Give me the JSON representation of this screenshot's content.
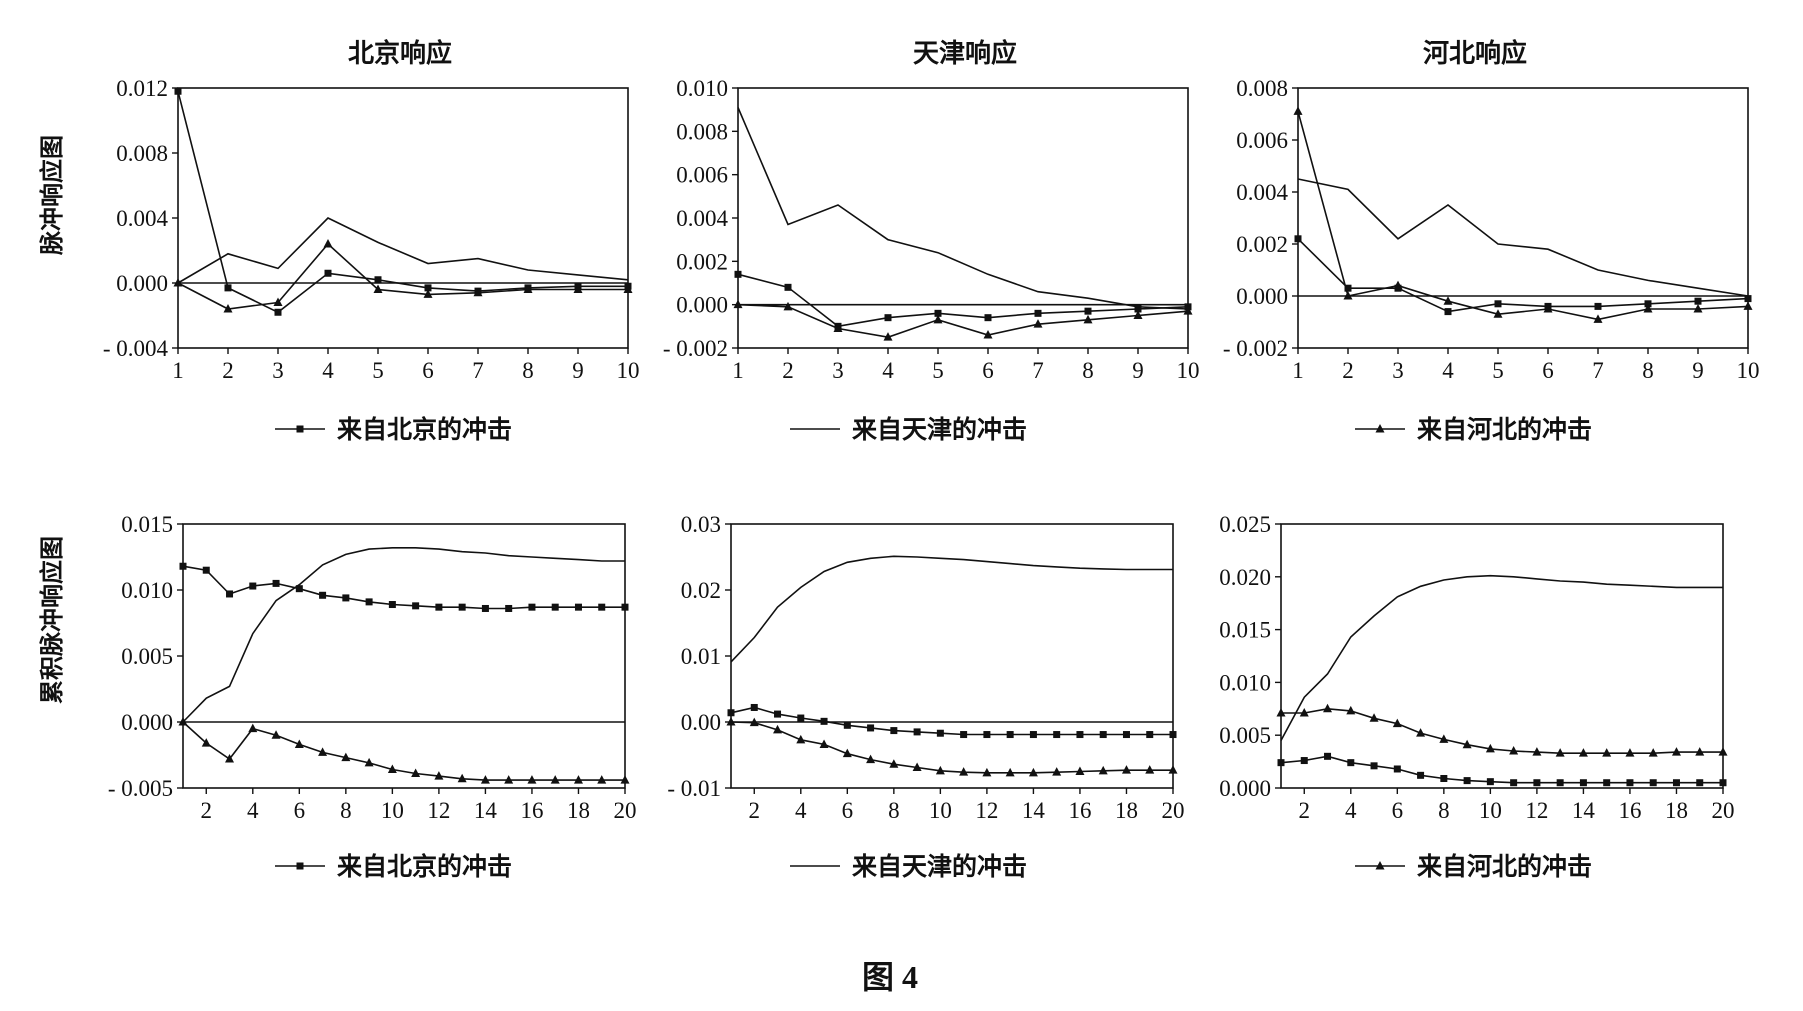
{
  "figure_caption": "图 4",
  "row_labels": [
    "脉冲响应图",
    "累积脉冲响应图"
  ],
  "chart_data": [
    {
      "type": "line",
      "row": 0,
      "col": 0,
      "title": "北京响应",
      "xlim": [
        1,
        10
      ],
      "ylim": [
        -0.004,
        0.012
      ],
      "x_ticks": [
        1,
        2,
        3,
        4,
        5,
        6,
        7,
        8,
        9,
        10
      ],
      "y_ticks": [
        -0.004,
        0.0,
        0.004,
        0.008,
        0.012
      ],
      "y_tick_labels": [
        "- 0.004",
        "0.000",
        "0.004",
        "0.008",
        "0.012"
      ],
      "x": [
        1,
        2,
        3,
        4,
        5,
        6,
        7,
        8,
        9,
        10
      ],
      "series": [
        {
          "name": "来自北京的冲击",
          "marker": "square",
          "values": [
            0.0118,
            -0.0003,
            -0.0018,
            0.0006,
            0.0002,
            -0.0003,
            -0.0005,
            -0.0003,
            -0.0002,
            -0.0002
          ]
        },
        {
          "name": "来自天津的冲击",
          "marker": "none",
          "values": [
            0.0,
            0.0018,
            0.0009,
            0.004,
            0.0025,
            0.0012,
            0.0015,
            0.0008,
            0.0005,
            0.0002
          ]
        },
        {
          "name": "来自河北的冲击",
          "marker": "triangle",
          "values": [
            0.0,
            -0.0016,
            -0.0012,
            0.0024,
            -0.0004,
            -0.0007,
            -0.0006,
            -0.0004,
            -0.0004,
            -0.0004
          ]
        }
      ],
      "legend": {
        "series_index": 0,
        "label": "来自北京的冲击"
      }
    },
    {
      "type": "line",
      "row": 0,
      "col": 1,
      "title": "天津响应",
      "xlim": [
        1,
        10
      ],
      "ylim": [
        -0.002,
        0.01
      ],
      "x_ticks": [
        1,
        2,
        3,
        4,
        5,
        6,
        7,
        8,
        9,
        10
      ],
      "y_ticks": [
        -0.002,
        0.0,
        0.002,
        0.004,
        0.006,
        0.008,
        0.01
      ],
      "y_tick_labels": [
        "- 0.002",
        "0.000",
        "0.002",
        "0.004",
        "0.006",
        "0.008",
        "0.010"
      ],
      "x": [
        1,
        2,
        3,
        4,
        5,
        6,
        7,
        8,
        9,
        10
      ],
      "series": [
        {
          "name": "来自北京的冲击",
          "marker": "square",
          "values": [
            0.0014,
            0.0008,
            -0.001,
            -0.0006,
            -0.0004,
            -0.0006,
            -0.0004,
            -0.0003,
            -0.0002,
            -0.0001
          ]
        },
        {
          "name": "来自天津的冲击",
          "marker": "none",
          "values": [
            0.0091,
            0.0037,
            0.0046,
            0.003,
            0.0024,
            0.0014,
            0.0006,
            0.0003,
            -0.0001,
            -0.0002
          ]
        },
        {
          "name": "来自河北的冲击",
          "marker": "triangle",
          "values": [
            0.0,
            -0.0001,
            -0.0011,
            -0.0015,
            -0.0007,
            -0.0014,
            -0.0009,
            -0.0007,
            -0.0005,
            -0.0003
          ]
        }
      ],
      "legend": {
        "series_index": 1,
        "label": "来自天津的冲击"
      }
    },
    {
      "type": "line",
      "row": 0,
      "col": 2,
      "title": "河北响应",
      "xlim": [
        1,
        10
      ],
      "ylim": [
        -0.002,
        0.008
      ],
      "x_ticks": [
        1,
        2,
        3,
        4,
        5,
        6,
        7,
        8,
        9,
        10
      ],
      "y_ticks": [
        -0.002,
        0.0,
        0.002,
        0.004,
        0.006,
        0.008
      ],
      "y_tick_labels": [
        "- 0.002",
        "0.000",
        "0.002",
        "0.004",
        "0.006",
        "0.008"
      ],
      "x": [
        1,
        2,
        3,
        4,
        5,
        6,
        7,
        8,
        9,
        10
      ],
      "series": [
        {
          "name": "来自北京的冲击",
          "marker": "square",
          "values": [
            0.0022,
            0.0003,
            0.0003,
            -0.0006,
            -0.0003,
            -0.0004,
            -0.0004,
            -0.0003,
            -0.0002,
            -0.0001
          ]
        },
        {
          "name": "来自天津的冲击",
          "marker": "none",
          "values": [
            0.0045,
            0.0041,
            0.0022,
            0.0035,
            0.002,
            0.0018,
            0.001,
            0.0006,
            0.0003,
            0.0
          ]
        },
        {
          "name": "来自河北的冲击",
          "marker": "triangle",
          "values": [
            0.0071,
            0.0,
            0.0004,
            -0.0002,
            -0.0007,
            -0.0005,
            -0.0009,
            -0.0005,
            -0.0005,
            -0.0004
          ]
        }
      ],
      "legend": {
        "series_index": 2,
        "label": "来自河北的冲击"
      }
    },
    {
      "type": "line",
      "row": 1,
      "col": 0,
      "xlim": [
        1,
        20
      ],
      "ylim": [
        -0.005,
        0.015
      ],
      "x_ticks": [
        2,
        4,
        6,
        8,
        10,
        12,
        14,
        16,
        18,
        20
      ],
      "y_ticks": [
        -0.005,
        0.0,
        0.005,
        0.01,
        0.015
      ],
      "y_tick_labels": [
        "- 0.005",
        "0.000",
        "0.005",
        "0.010",
        "0.015"
      ],
      "x": [
        1,
        2,
        3,
        4,
        5,
        6,
        7,
        8,
        9,
        10,
        11,
        12,
        13,
        14,
        15,
        16,
        17,
        18,
        19,
        20
      ],
      "series": [
        {
          "name": "来自北京的冲击",
          "marker": "square",
          "values": [
            0.0118,
            0.0115,
            0.0097,
            0.0103,
            0.0105,
            0.0101,
            0.0096,
            0.0094,
            0.0091,
            0.0089,
            0.0088,
            0.0087,
            0.0087,
            0.0086,
            0.0086,
            0.0087,
            0.0087,
            0.0087,
            0.0087,
            0.0087
          ]
        },
        {
          "name": "来自天津的冲击",
          "marker": "none",
          "values": [
            0.0,
            0.0018,
            0.0027,
            0.0067,
            0.0092,
            0.0104,
            0.0119,
            0.0127,
            0.0131,
            0.0132,
            0.0132,
            0.0131,
            0.0129,
            0.0128,
            0.0126,
            0.0125,
            0.0124,
            0.0123,
            0.0122,
            0.0122
          ]
        },
        {
          "name": "来自河北的冲击",
          "marker": "triangle",
          "values": [
            0.0,
            -0.0016,
            -0.0028,
            -0.0005,
            -0.001,
            -0.0017,
            -0.0023,
            -0.0027,
            -0.0031,
            -0.0036,
            -0.0039,
            -0.0041,
            -0.0043,
            -0.0044,
            -0.0044,
            -0.0044,
            -0.0044,
            -0.0044,
            -0.0044,
            -0.0044
          ]
        }
      ],
      "legend": {
        "series_index": 0,
        "label": "来自北京的冲击"
      }
    },
    {
      "type": "line",
      "row": 1,
      "col": 1,
      "xlim": [
        1,
        20
      ],
      "ylim": [
        -0.01,
        0.03
      ],
      "x_ticks": [
        2,
        4,
        6,
        8,
        10,
        12,
        14,
        16,
        18,
        20
      ],
      "y_ticks": [
        -0.01,
        0.0,
        0.01,
        0.02,
        0.03
      ],
      "y_tick_labels": [
        "- 0.01",
        "0.00",
        "0.01",
        "0.02",
        "0.03"
      ],
      "x": [
        1,
        2,
        3,
        4,
        5,
        6,
        7,
        8,
        9,
        10,
        11,
        12,
        13,
        14,
        15,
        16,
        17,
        18,
        19,
        20
      ],
      "series": [
        {
          "name": "来自北京的冲击",
          "marker": "square",
          "values": [
            0.0014,
            0.0022,
            0.0012,
            0.0006,
            0.0001,
            -0.0005,
            -0.0009,
            -0.0013,
            -0.0015,
            -0.0017,
            -0.0019,
            -0.0019,
            -0.0019,
            -0.0019,
            -0.0019,
            -0.0019,
            -0.0019,
            -0.0019,
            -0.0019,
            -0.0019
          ]
        },
        {
          "name": "来自天津的冲击",
          "marker": "none",
          "values": [
            0.0091,
            0.0128,
            0.0174,
            0.0204,
            0.0228,
            0.0242,
            0.0248,
            0.0251,
            0.025,
            0.0248,
            0.0246,
            0.0243,
            0.024,
            0.0237,
            0.0235,
            0.0233,
            0.0232,
            0.0231,
            0.0231,
            0.0231
          ]
        },
        {
          "name": "来自河北的冲击",
          "marker": "triangle",
          "values": [
            0.0,
            -0.0001,
            -0.0012,
            -0.0027,
            -0.0034,
            -0.0048,
            -0.0057,
            -0.0064,
            -0.0069,
            -0.0074,
            -0.0076,
            -0.0077,
            -0.0077,
            -0.0077,
            -0.0076,
            -0.0075,
            -0.0074,
            -0.0073,
            -0.0073,
            -0.0073
          ]
        }
      ],
      "legend": {
        "series_index": 1,
        "label": "来自天津的冲击"
      }
    },
    {
      "type": "line",
      "row": 1,
      "col": 2,
      "xlim": [
        1,
        20
      ],
      "ylim": [
        0.0,
        0.025
      ],
      "x_ticks": [
        2,
        4,
        6,
        8,
        10,
        12,
        14,
        16,
        18,
        20
      ],
      "y_ticks": [
        0.0,
        0.005,
        0.01,
        0.015,
        0.02,
        0.025
      ],
      "y_tick_labels": [
        "0.000",
        "0.005",
        "0.010",
        "0.015",
        "0.020",
        "0.025"
      ],
      "x": [
        1,
        2,
        3,
        4,
        5,
        6,
        7,
        8,
        9,
        10,
        11,
        12,
        13,
        14,
        15,
        16,
        17,
        18,
        19,
        20
      ],
      "series": [
        {
          "name": "来自北京的冲击",
          "marker": "square",
          "values": [
            0.0024,
            0.0026,
            0.003,
            0.0024,
            0.0021,
            0.0018,
            0.0012,
            0.0009,
            0.0007,
            0.0006,
            0.0005,
            0.0005,
            0.0005,
            0.0005,
            0.0005,
            0.0005,
            0.0005,
            0.0005,
            0.0005,
            0.0005
          ]
        },
        {
          "name": "来自天津的冲击",
          "marker": "none",
          "values": [
            0.0045,
            0.0086,
            0.0108,
            0.0143,
            0.0163,
            0.0181,
            0.0191,
            0.0197,
            0.02,
            0.0201,
            0.02,
            0.0198,
            0.0196,
            0.0195,
            0.0193,
            0.0192,
            0.0191,
            0.019,
            0.019,
            0.019
          ]
        },
        {
          "name": "来自河北的冲击",
          "marker": "triangle",
          "values": [
            0.0071,
            0.0071,
            0.0075,
            0.0073,
            0.0066,
            0.0061,
            0.0052,
            0.0046,
            0.0041,
            0.0037,
            0.0035,
            0.0034,
            0.0033,
            0.0033,
            0.0033,
            0.0033,
            0.0033,
            0.0034,
            0.0034,
            0.0034
          ]
        }
      ],
      "legend": {
        "series_index": 2,
        "label": "来自河北的冲击"
      }
    }
  ]
}
